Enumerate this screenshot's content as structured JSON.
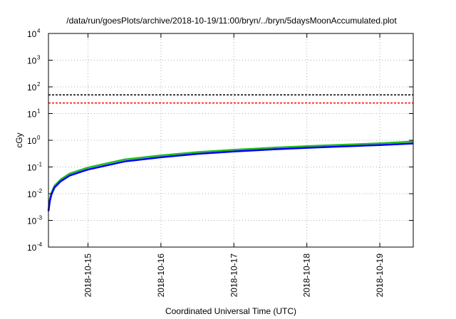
{
  "chart_data": {
    "type": "line",
    "title": "/data/run/goesPlots/archive/2018-10-19/11:00/bryn/../bryn/5daysMoonAccumulated.plot",
    "xlabel": "Coordinated Universal Time (UTC)",
    "ylabel": "cGy",
    "yscale": "log",
    "ylim": [
      0.0001,
      10000
    ],
    "y_ticks": [
      {
        "base": "10",
        "exp": "-4",
        "value": 0.0001
      },
      {
        "base": "10",
        "exp": "-3",
        "value": 0.001
      },
      {
        "base": "10",
        "exp": "-2",
        "value": 0.01
      },
      {
        "base": "10",
        "exp": "-1",
        "value": 0.1
      },
      {
        "base": "10",
        "exp": "0",
        "value": 1
      },
      {
        "base": "10",
        "exp": "1",
        "value": 10
      },
      {
        "base": "10",
        "exp": "2",
        "value": 100
      },
      {
        "base": "10",
        "exp": "3",
        "value": 1000
      },
      {
        "base": "10",
        "exp": "4",
        "value": 10000
      }
    ],
    "xlim": [
      "2018-10-14 11:00",
      "2018-10-19 11:00"
    ],
    "x_ticks": [
      "2018-10-15",
      "2018-10-16",
      "2018-10-17",
      "2018-10-18",
      "2018-10-19"
    ],
    "grid": true,
    "legend": "none",
    "thresholds": [
      {
        "value": 50,
        "color": "#000000",
        "style": "dashed"
      },
      {
        "value": 25,
        "color": "#ff0000",
        "style": "dashed"
      }
    ],
    "series": [
      {
        "color": "#22bb22",
        "x": [
          "2018-10-14 11:00",
          "2018-10-14 11:30",
          "2018-10-14 12:00",
          "2018-10-14 13:00",
          "2018-10-14 15:00",
          "2018-10-14 18:00",
          "2018-10-15 00:00",
          "2018-10-15 12:00",
          "2018-10-16 00:00",
          "2018-10-16 12:00",
          "2018-10-17 00:00",
          "2018-10-17 12:00",
          "2018-10-18 00:00",
          "2018-10-18 12:00",
          "2018-10-19 00:00",
          "2018-10-19 11:00"
        ],
        "values": [
          0.0025,
          0.0065,
          0.011,
          0.02,
          0.034,
          0.057,
          0.095,
          0.19,
          0.27,
          0.36,
          0.44,
          0.52,
          0.6,
          0.68,
          0.77,
          0.9
        ]
      },
      {
        "color": "#0000ff",
        "x": [
          "2018-10-14 11:00",
          "2018-10-14 11:30",
          "2018-10-14 12:00",
          "2018-10-14 13:00",
          "2018-10-14 15:00",
          "2018-10-14 18:00",
          "2018-10-15 00:00",
          "2018-10-15 12:00",
          "2018-10-16 00:00",
          "2018-10-16 12:00",
          "2018-10-17 00:00",
          "2018-10-17 12:00",
          "2018-10-18 00:00",
          "2018-10-18 12:00",
          "2018-10-19 00:00",
          "2018-10-19 11:00"
        ],
        "values": [
          0.0022,
          0.0055,
          0.0095,
          0.017,
          0.029,
          0.048,
          0.08,
          0.16,
          0.23,
          0.31,
          0.38,
          0.45,
          0.52,
          0.59,
          0.66,
          0.76
        ]
      }
    ]
  }
}
